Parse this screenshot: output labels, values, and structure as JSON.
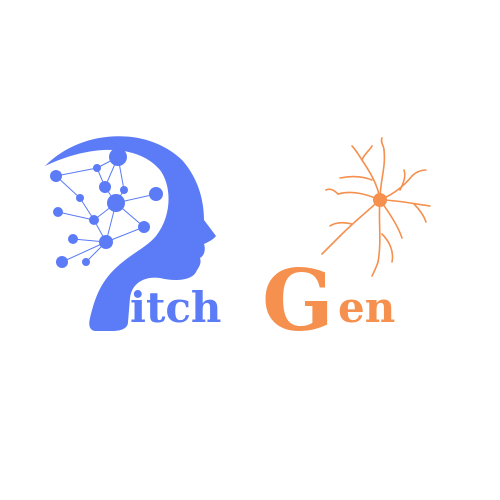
{
  "logo": {
    "text_part1": "itch",
    "text_part2": "G",
    "text_part3": "en",
    "primary_color": "#5B7BF7",
    "accent_color": "#F5904E",
    "background": "#FFFFFF"
  }
}
